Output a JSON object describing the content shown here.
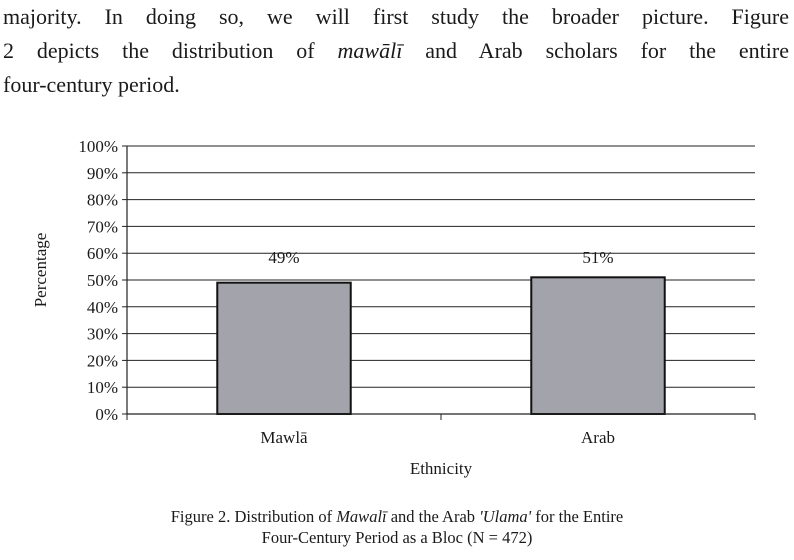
{
  "text": {
    "line1": "majority. In doing so, we will first study the broader picture. Figure",
    "line2_pre": "2 depicts the distribution of ",
    "line2_em": "mawālī",
    "line2_post": " and Arab scholars for the entire",
    "line3": "four-century period."
  },
  "chart_data": {
    "type": "bar",
    "categories": [
      "Mawlā",
      "Arab"
    ],
    "values": [
      49,
      51
    ],
    "value_labels": [
      "49%",
      "51%"
    ],
    "xlabel": "Ethnicity",
    "ylabel": "Percentage",
    "ylim": [
      0,
      100
    ],
    "yticks": [
      "0%",
      "10%",
      "20%",
      "30%",
      "40%",
      "50%",
      "60%",
      "70%",
      "80%",
      "90%",
      "100%"
    ],
    "grid": true,
    "legend": "none",
    "bar_color": "#a3a3ab"
  },
  "caption": {
    "line1_pre": "Figure 2. Distribution of ",
    "line1_em1": "Mawalī",
    "line1_mid": " and the Arab ",
    "line1_em2": "'Ulama'",
    "line1_post": " for the Entire",
    "line2": "Four-Century Period as a Bloc (N = 472)"
  }
}
